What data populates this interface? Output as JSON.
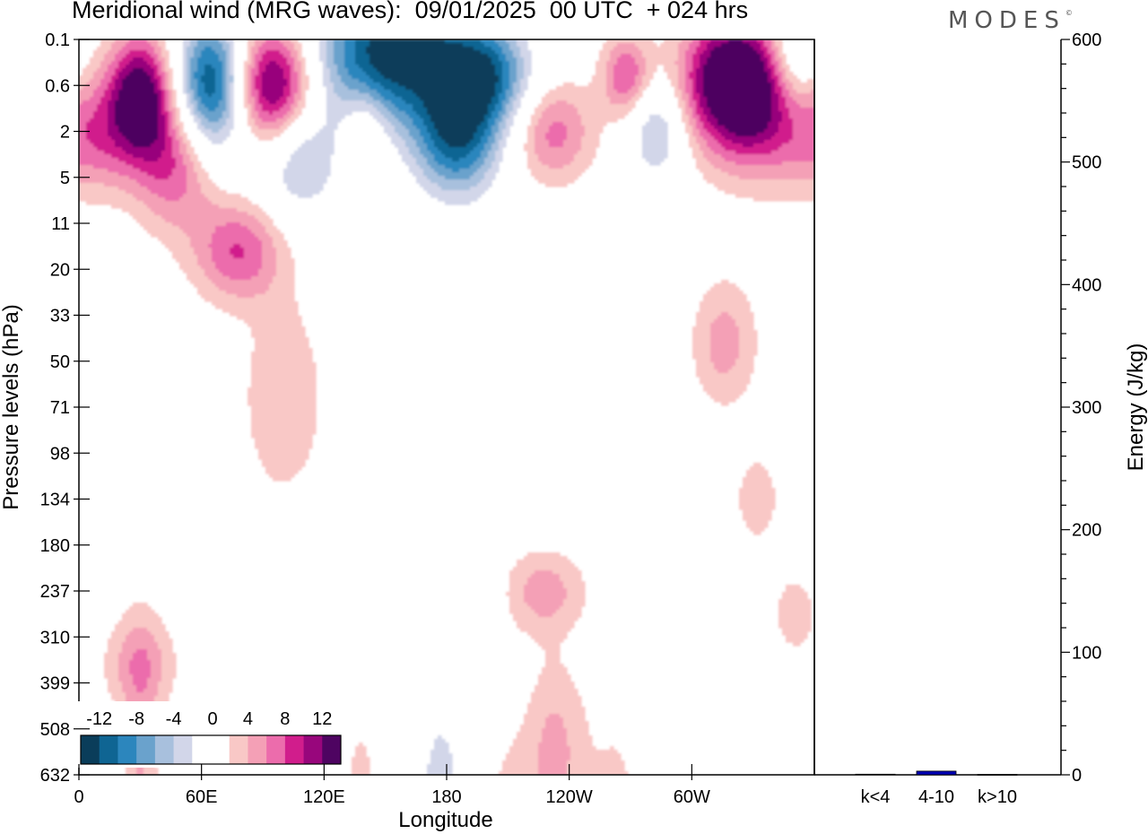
{
  "title": "Meridional wind (MRG waves):  09/01/2025  00 UTC  + 024 hrs",
  "brand": "MODES",
  "brand_mark": "©",
  "chart_data": [
    {
      "type": "heatmap",
      "title": "Meridional wind (MRG waves):  09/01/2025  00 UTC  + 024 hrs",
      "xlabel": "Longitude",
      "ylabel": "Pressure levels (hPa)",
      "x_ticks": [
        "0",
        "60E",
        "120E",
        "180",
        "120W",
        "60W"
      ],
      "x_tick_values": [
        0,
        60,
        120,
        180,
        240,
        300
      ],
      "xlim": [
        0,
        360
      ],
      "y_ticks": [
        "0.1",
        "0.6",
        "2",
        "5",
        "11",
        "20",
        "33",
        "50",
        "71",
        "98",
        "134",
        "180",
        "237",
        "310",
        "399",
        "508",
        "632"
      ],
      "colorbar": {
        "labels": [
          "-12",
          "-8",
          "-4",
          "0",
          "4",
          "8",
          "12"
        ],
        "levels": [
          -14,
          -12,
          -10,
          -8,
          -6,
          -4,
          -2,
          2,
          4,
          6,
          8,
          10,
          12,
          14
        ],
        "colors": [
          "#0a3d5a",
          "#0f6593",
          "#2c86bd",
          "#6aa2cc",
          "#a8c0dd",
          "#d2d6e9",
          "#ffffff",
          "#ffffff",
          "#f9c8c6",
          "#f4a0b6",
          "#ec6cac",
          "#d11d8c",
          "#98067c",
          "#4e0461"
        ]
      },
      "features": [
        {
          "lon": 30,
          "lev": 1.2,
          "rx": 16,
          "ry": 1.3,
          "v": 14
        },
        {
          "lon": 65,
          "lev": 1.0,
          "rx": 18,
          "ry": 1.5,
          "v": -15
        },
        {
          "lon": 95,
          "lev": 1.0,
          "rx": 20,
          "ry": 1.3,
          "v": 15
        },
        {
          "lon": 155,
          "lev": 0.3,
          "rx": 40,
          "ry": 1.5,
          "v": -16
        },
        {
          "lon": 185,
          "lev": 2.2,
          "rx": 22,
          "ry": 1.3,
          "v": -12
        },
        {
          "lon": 200,
          "lev": 0.8,
          "rx": 22,
          "ry": 1.1,
          "v": -10
        },
        {
          "lon": 268,
          "lev": 0.8,
          "rx": 12,
          "ry": 0.9,
          "v": 8
        },
        {
          "lon": 320,
          "lev": 0.8,
          "rx": 25,
          "ry": 1.4,
          "v": 15
        },
        {
          "lon": 350,
          "lev": 0.4,
          "rx": 12,
          "ry": 1.2,
          "v": -6
        },
        {
          "lon": 10,
          "lev": 2.2,
          "rx": 20,
          "ry": 1.2,
          "v": 5
        },
        {
          "lon": 47,
          "lev": 2.7,
          "rx": 20,
          "ry": 1.4,
          "v": 8
        },
        {
          "lon": 78,
          "lev": 4.6,
          "rx": 22,
          "ry": 1.1,
          "v": 8
        },
        {
          "lon": 108,
          "lev": 2.6,
          "rx": 20,
          "ry": 1.3,
          "v": -7
        },
        {
          "lon": 140,
          "lev": 2.0,
          "rx": 10,
          "ry": 1.0,
          "v": 4
        },
        {
          "lon": 232,
          "lev": 2.0,
          "rx": 20,
          "ry": 1.1,
          "v": 7
        },
        {
          "lon": 283,
          "lev": 2.0,
          "rx": 14,
          "ry": 1.1,
          "v": -7
        },
        {
          "lon": 336,
          "lev": 1.8,
          "rx": 30,
          "ry": 1.4,
          "v": 7
        },
        {
          "lon": 100,
          "lev": 7.8,
          "rx": 20,
          "ry": 2.2,
          "v": 4
        },
        {
          "lon": 195,
          "lev": 6.8,
          "rx": 35,
          "ry": 1.8,
          "v": -3
        },
        {
          "lon": 316,
          "lev": 6.6,
          "rx": 16,
          "ry": 1.4,
          "v": 5
        },
        {
          "lon": 332,
          "lev": 10.0,
          "rx": 10,
          "ry": 0.9,
          "v": 4
        },
        {
          "lon": 30,
          "lev": 13.6,
          "rx": 18,
          "ry": 1.1,
          "v": 5
        },
        {
          "lon": 228,
          "lev": 12.0,
          "rx": 20,
          "ry": 0.9,
          "v": 5
        },
        {
          "lon": 143,
          "lev": 12.4,
          "rx": 12,
          "ry": 0.8,
          "v": -3
        },
        {
          "lon": 185,
          "lev": 12.0,
          "rx": 18,
          "ry": 0.8,
          "v": -3
        },
        {
          "lon": 285,
          "lev": 13.0,
          "rx": 20,
          "ry": 1.5,
          "v": -3
        },
        {
          "lon": 350,
          "lev": 12.5,
          "rx": 10,
          "ry": 0.8,
          "v": 4
        },
        {
          "lon": 235,
          "lev": 16.0,
          "rx": 14,
          "ry": 2.4,
          "v": 7
        },
        {
          "lon": 295,
          "lev": 16.8,
          "rx": 12,
          "ry": 1.4,
          "v": -5
        },
        {
          "lon": 312,
          "lev": 17.2,
          "rx": 8,
          "ry": 1.2,
          "v": 5
        },
        {
          "lon": 5,
          "lev": 23.0,
          "rx": 10,
          "ry": 3.5,
          "v": -4
        },
        {
          "lon": 30,
          "lev": 21.0,
          "rx": 9,
          "ry": 5.8,
          "v": 9
        },
        {
          "lon": 55,
          "lev": 21.0,
          "rx": 7,
          "ry": 4.5,
          "v": -5
        },
        {
          "lon": 77,
          "lev": 22.5,
          "rx": 8,
          "ry": 5.0,
          "v": 5
        },
        {
          "lon": 105,
          "lev": 23.5,
          "rx": 8,
          "ry": 6.5,
          "v": -3
        },
        {
          "lon": 138,
          "lev": 22.5,
          "rx": 13,
          "ry": 7.5,
          "v": 5
        },
        {
          "lon": 177,
          "lev": 18.3,
          "rx": 13,
          "ry": 4.2,
          "v": -7
        },
        {
          "lon": 187,
          "lev": 26.5,
          "rx": 13,
          "ry": 3.2,
          "v": -8
        },
        {
          "lon": 210,
          "lev": 24.0,
          "rx": 12,
          "ry": 6.0,
          "v": 13
        },
        {
          "lon": 238,
          "lev": 23.8,
          "rx": 10,
          "ry": 5.8,
          "v": -16
        },
        {
          "lon": 263,
          "lev": 24.0,
          "rx": 12,
          "ry": 6.2,
          "v": 13
        },
        {
          "lon": 290,
          "lev": 22.0,
          "rx": 9,
          "ry": 3.8,
          "v": -5
        },
        {
          "lon": 315,
          "lev": 23.0,
          "rx": 8,
          "ry": 3.8,
          "v": 5
        },
        {
          "lon": 338,
          "lev": 24.0,
          "rx": 9,
          "ry": 6.0,
          "v": -9
        },
        {
          "lon": 355,
          "lev": 24.5,
          "rx": 7,
          "ry": 5.0,
          "v": 7
        }
      ]
    },
    {
      "type": "bar",
      "categories": [
        "k<4",
        "4-10",
        "k>10"
      ],
      "values": [
        0.5,
        3.0,
        0.3
      ],
      "ylabel": "Energy (J/kg)",
      "ylim": [
        0,
        600
      ],
      "y_ticks": [
        0,
        100,
        200,
        300,
        400,
        500,
        600
      ],
      "bar_color": "#0000b3"
    }
  ]
}
